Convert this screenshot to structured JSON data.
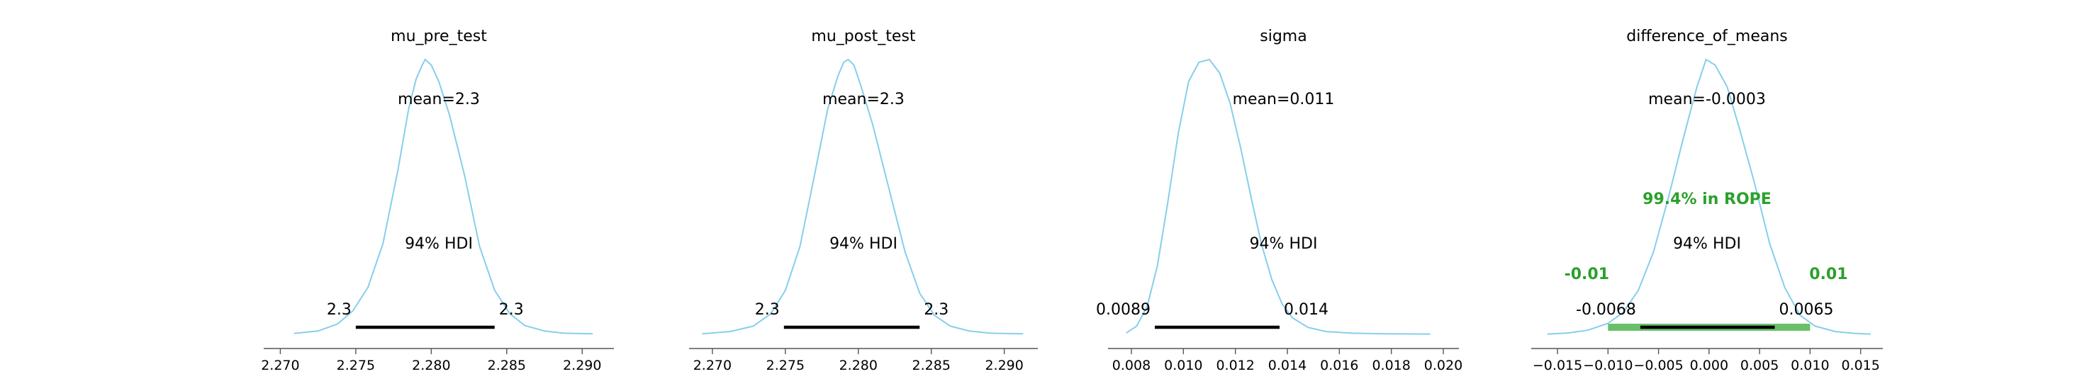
{
  "colors": {
    "density": "#87ceeb",
    "hdi": "#000000",
    "rope": "#2ca02c",
    "rope_bar": "#6abf69",
    "axis": "#555555",
    "text": "#000000"
  },
  "chart_data": [
    {
      "type": "area",
      "title": "mu_pre_test",
      "mean_label": "mean=2.3",
      "hdi_label": "94% HDI",
      "hdi": [
        2.275,
        2.2842
      ],
      "hdi_bound_labels": [
        "2.3",
        "2.3"
      ],
      "xlim": [
        2.2689,
        2.2921
      ],
      "xticks": [
        2.27,
        2.275,
        2.28,
        2.285,
        2.29
      ],
      "xtick_labels": [
        "2.270",
        "2.275",
        "2.280",
        "2.285",
        "2.290"
      ],
      "density": {
        "x": [
          2.2709,
          2.2725,
          2.2738,
          2.2748,
          2.2758,
          2.2768,
          2.2778,
          2.2785,
          2.279,
          2.2794,
          2.2796,
          2.28,
          2.2805,
          2.2812,
          2.2822,
          2.2832,
          2.2842,
          2.2852,
          2.2862,
          2.2875,
          2.2888,
          2.2907
        ],
        "y": [
          0.003,
          0.012,
          0.038,
          0.085,
          0.17,
          0.33,
          0.6,
          0.82,
          0.93,
          0.98,
          1.0,
          0.98,
          0.92,
          0.8,
          0.58,
          0.32,
          0.16,
          0.075,
          0.032,
          0.012,
          0.004,
          0.002
        ]
      }
    },
    {
      "type": "area",
      "title": "mu_post_test",
      "mean_label": "mean=2.3",
      "hdi_label": "94% HDI",
      "hdi": [
        2.2749,
        2.2842
      ],
      "hdi_bound_labels": [
        "2.3",
        "2.3"
      ],
      "xlim": [
        2.2684,
        2.2923
      ],
      "xticks": [
        2.27,
        2.275,
        2.28,
        2.285,
        2.29
      ],
      "xtick_labels": [
        "2.270",
        "2.275",
        "2.280",
        "2.285",
        "2.290"
      ],
      "density": {
        "x": [
          2.2693,
          2.2712,
          2.2728,
          2.274,
          2.275,
          2.276,
          2.277,
          2.2779,
          2.2786,
          2.279,
          2.2793,
          2.2797,
          2.2802,
          2.281,
          2.282,
          2.2832,
          2.2842,
          2.2852,
          2.2863,
          2.2876,
          2.289,
          2.2913
        ],
        "y": [
          0.002,
          0.01,
          0.03,
          0.075,
          0.16,
          0.32,
          0.58,
          0.82,
          0.94,
          0.99,
          1.0,
          0.98,
          0.9,
          0.76,
          0.55,
          0.3,
          0.15,
          0.07,
          0.03,
          0.012,
          0.004,
          0.002
        ]
      }
    },
    {
      "type": "area",
      "title": "sigma",
      "mean_label": "mean=0.011",
      "hdi_label": "94% HDI",
      "hdi": [
        0.0089,
        0.0137
      ],
      "hdi_bound_labels": [
        "0.0089",
        "0.014"
      ],
      "xlim": [
        0.0071,
        0.0206
      ],
      "xticks": [
        0.008,
        0.01,
        0.012,
        0.014,
        0.016,
        0.018,
        0.02
      ],
      "xtick_labels": [
        "0.008",
        "0.010",
        "0.012",
        "0.014",
        "0.016",
        "0.018",
        "0.020"
      ],
      "density": {
        "x": [
          0.0078,
          0.0082,
          0.0086,
          0.009,
          0.0094,
          0.0098,
          0.0102,
          0.0106,
          0.011,
          0.0114,
          0.0118,
          0.0122,
          0.0126,
          0.013,
          0.0134,
          0.0138,
          0.0142,
          0.0148,
          0.0155,
          0.0165,
          0.0178,
          0.0195
        ],
        "y": [
          0.005,
          0.03,
          0.1,
          0.25,
          0.48,
          0.73,
          0.92,
          0.99,
          1.0,
          0.95,
          0.84,
          0.68,
          0.5,
          0.33,
          0.2,
          0.11,
          0.06,
          0.025,
          0.01,
          0.004,
          0.002,
          0.001
        ]
      }
    },
    {
      "type": "area",
      "title": "difference_of_means",
      "mean_label": "mean=-0.0003",
      "hdi_label": "94% HDI",
      "hdi": [
        -0.0068,
        0.0065
      ],
      "hdi_bound_labels": [
        "-0.0068",
        "0.0065"
      ],
      "rope": [
        -0.01,
        0.01
      ],
      "rope_label": "99.4% in ROPE",
      "rope_bound_labels": [
        "-0.01",
        "0.01"
      ],
      "xlim": [
        -0.0176,
        0.0172
      ],
      "xticks": [
        -0.015,
        -0.01,
        -0.005,
        0.0,
        0.005,
        0.01,
        0.015
      ],
      "xtick_labels": [
        "−0.015",
        "−0.010",
        "−0.005",
        "0.000",
        "0.005",
        "0.010",
        "0.015"
      ],
      "density": {
        "x": [
          -0.016,
          -0.014,
          -0.012,
          -0.01,
          -0.0085,
          -0.007,
          -0.0055,
          -0.004,
          -0.0025,
          -0.0012,
          -0.0003,
          0.0006,
          0.0018,
          0.003,
          0.0045,
          0.006,
          0.0075,
          0.009,
          0.0105,
          0.0125,
          0.0145,
          0.016
        ],
        "y": [
          0.001,
          0.005,
          0.015,
          0.04,
          0.08,
          0.16,
          0.3,
          0.5,
          0.72,
          0.9,
          1.0,
          0.98,
          0.9,
          0.75,
          0.55,
          0.33,
          0.17,
          0.07,
          0.03,
          0.01,
          0.003,
          0.001
        ]
      }
    }
  ]
}
